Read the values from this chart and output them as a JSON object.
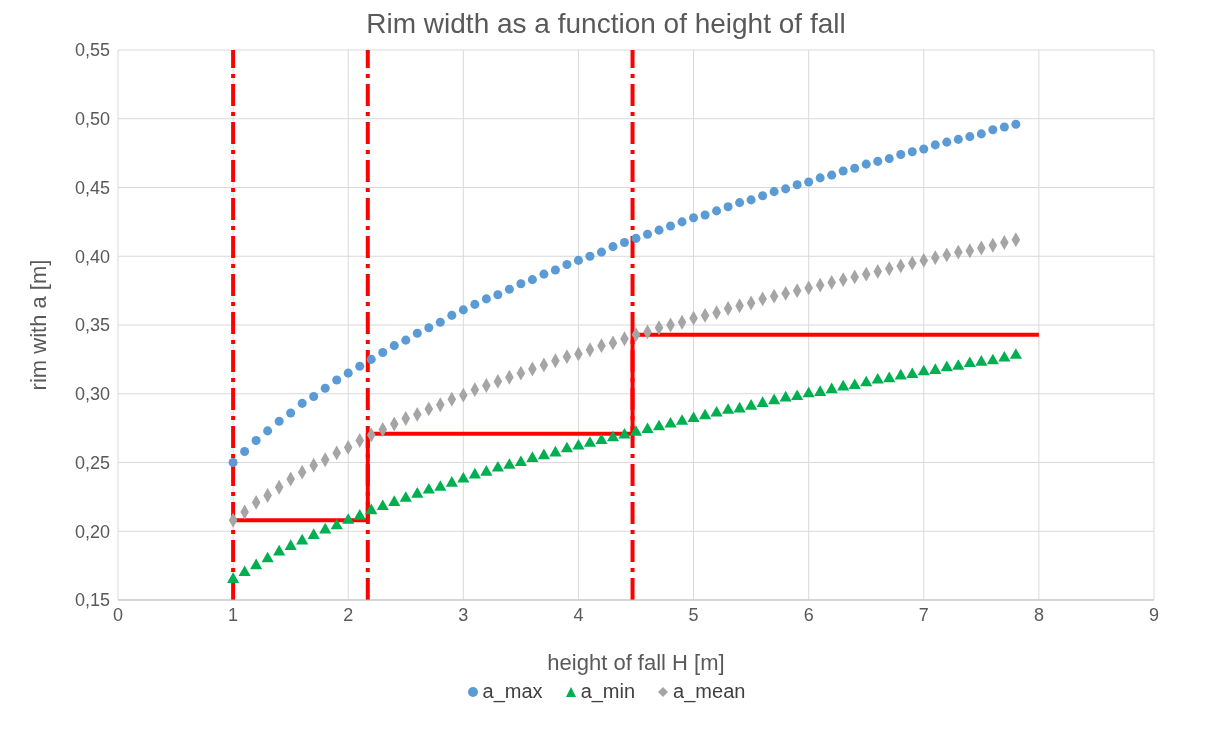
{
  "chart_data": {
    "type": "scatter",
    "title": "Rim width as a function of height of fall",
    "xlabel": "height of fall H [m]",
    "ylabel": "rim with a [m]",
    "xlim": [
      0,
      9
    ],
    "xticks": [
      0,
      1,
      2,
      3,
      4,
      5,
      6,
      7,
      8,
      9
    ],
    "ylim": [
      0.15,
      0.55
    ],
    "yticks": [
      {
        "value": 0.15,
        "label": "0,15"
      },
      {
        "value": 0.2,
        "label": "0,20"
      },
      {
        "value": 0.25,
        "label": "0,25"
      },
      {
        "value": 0.3,
        "label": "0,30"
      },
      {
        "value": 0.35,
        "label": "0,35"
      },
      {
        "value": 0.4,
        "label": "0,40"
      },
      {
        "value": 0.45,
        "label": "0,45"
      },
      {
        "value": 0.5,
        "label": "0,50"
      },
      {
        "value": 0.55,
        "label": "0,55"
      }
    ],
    "grid": true,
    "legend": "bottom",
    "x": [
      1.0,
      1.1,
      1.2,
      1.3,
      1.4,
      1.5,
      1.6,
      1.7,
      1.8,
      1.9,
      2.0,
      2.1,
      2.2,
      2.3,
      2.4,
      2.5,
      2.6,
      2.7,
      2.8,
      2.9,
      3.0,
      3.1,
      3.2,
      3.3,
      3.4,
      3.5,
      3.6,
      3.7,
      3.8,
      3.9,
      4.0,
      4.1,
      4.2,
      4.3,
      4.4,
      4.5,
      4.6,
      4.7,
      4.8,
      4.9,
      5.0,
      5.1,
      5.2,
      5.3,
      5.4,
      5.5,
      5.6,
      5.7,
      5.8,
      5.9,
      6.0,
      6.1,
      6.2,
      6.3,
      6.4,
      6.5,
      6.6,
      6.7,
      6.8,
      6.9,
      7.0,
      7.1,
      7.2,
      7.3,
      7.4,
      7.5,
      7.6,
      7.7,
      7.8
    ],
    "series": [
      {
        "name": "a_max",
        "color": "#5b9bd5",
        "marker": "circle",
        "values": [
          0.25,
          0.258,
          0.266,
          0.273,
          0.28,
          0.286,
          0.293,
          0.298,
          0.304,
          0.31,
          0.315,
          0.32,
          0.325,
          0.33,
          0.335,
          0.339,
          0.344,
          0.348,
          0.352,
          0.357,
          0.361,
          0.365,
          0.369,
          0.372,
          0.376,
          0.38,
          0.383,
          0.387,
          0.39,
          0.394,
          0.397,
          0.4,
          0.403,
          0.407,
          0.41,
          0.413,
          0.416,
          0.419,
          0.422,
          0.425,
          0.428,
          0.43,
          0.433,
          0.436,
          0.439,
          0.441,
          0.444,
          0.447,
          0.449,
          0.452,
          0.454,
          0.457,
          0.459,
          0.462,
          0.464,
          0.467,
          0.469,
          0.471,
          0.474,
          0.476,
          0.478,
          0.481,
          0.483,
          0.485,
          0.487,
          0.489,
          0.492,
          0.494,
          0.496
        ]
      },
      {
        "name": "a_min",
        "color": "#00b050",
        "marker": "triangle",
        "values": [
          0.165,
          0.17,
          0.175,
          0.18,
          0.185,
          0.189,
          0.193,
          0.197,
          0.201,
          0.204,
          0.208,
          0.211,
          0.215,
          0.218,
          0.221,
          0.224,
          0.227,
          0.23,
          0.232,
          0.235,
          0.238,
          0.241,
          0.243,
          0.246,
          0.248,
          0.25,
          0.253,
          0.255,
          0.257,
          0.26,
          0.262,
          0.264,
          0.266,
          0.268,
          0.27,
          0.272,
          0.274,
          0.276,
          0.278,
          0.28,
          0.282,
          0.284,
          0.286,
          0.288,
          0.289,
          0.291,
          0.293,
          0.295,
          0.297,
          0.298,
          0.3,
          0.301,
          0.303,
          0.305,
          0.306,
          0.308,
          0.31,
          0.311,
          0.313,
          0.314,
          0.316,
          0.317,
          0.319,
          0.32,
          0.322,
          0.323,
          0.324,
          0.326,
          0.328
        ]
      },
      {
        "name": "a_mean",
        "color": "#a5a5a5",
        "marker": "diamond",
        "values": [
          0.208,
          0.214,
          0.221,
          0.226,
          0.232,
          0.238,
          0.243,
          0.248,
          0.252,
          0.257,
          0.261,
          0.266,
          0.27,
          0.274,
          0.278,
          0.282,
          0.285,
          0.289,
          0.292,
          0.296,
          0.299,
          0.303,
          0.306,
          0.309,
          0.312,
          0.315,
          0.318,
          0.321,
          0.324,
          0.327,
          0.329,
          0.332,
          0.335,
          0.337,
          0.34,
          0.343,
          0.345,
          0.348,
          0.35,
          0.352,
          0.355,
          0.357,
          0.359,
          0.362,
          0.364,
          0.366,
          0.369,
          0.371,
          0.373,
          0.375,
          0.377,
          0.379,
          0.381,
          0.383,
          0.385,
          0.387,
          0.389,
          0.391,
          0.393,
          0.395,
          0.397,
          0.399,
          0.401,
          0.403,
          0.404,
          0.406,
          0.408,
          0.41,
          0.412
        ]
      },
      {
        "type": "step",
        "color": "#ff0000",
        "marker": "none",
        "line_style": "solid",
        "x": [
          1.0,
          2.17,
          4.47,
          8.0
        ],
        "values": [
          0.208,
          0.271,
          0.343,
          0.343
        ]
      }
    ],
    "ref_lines": [
      {
        "axis": "x",
        "value": 1.0,
        "color": "#ff0000",
        "line_style": "dashed"
      },
      {
        "axis": "x",
        "value": 2.17,
        "color": "#ff0000",
        "line_style": "dashed"
      },
      {
        "axis": "x",
        "value": 4.47,
        "color": "#ff0000",
        "line_style": "dashed"
      }
    ]
  }
}
